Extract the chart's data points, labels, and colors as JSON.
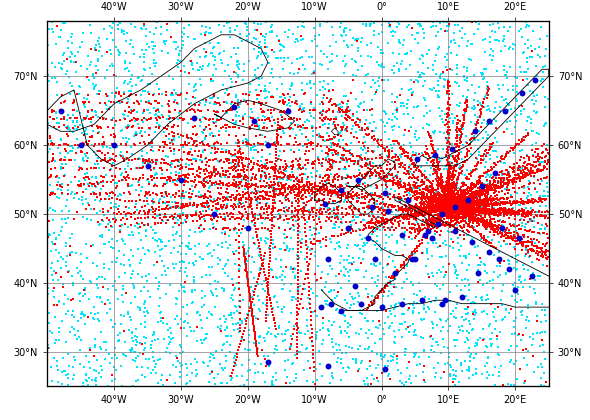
{
  "lon_min": -50,
  "lon_max": 25,
  "lat_min": 25,
  "lat_max": 78,
  "xticks": [
    -40,
    -30,
    -20,
    -10,
    0,
    10,
    20
  ],
  "yticks": [
    30,
    40,
    50,
    60,
    70
  ],
  "grid_color": "#808080",
  "background_color": "#ffffff",
  "satellite_color": "#00e5ff",
  "aircraft_color": "#ff0000",
  "radiosonde_color": "#0000cc",
  "satellite_size": 4,
  "aircraft_size": 4,
  "radiosonde_size": 18,
  "seed": 12345,
  "n_satellite": 4000,
  "hub_lon": 10.0,
  "hub_lat": 51.0,
  "figwidth": 5.9,
  "figheight": 4.2,
  "dpi": 100
}
